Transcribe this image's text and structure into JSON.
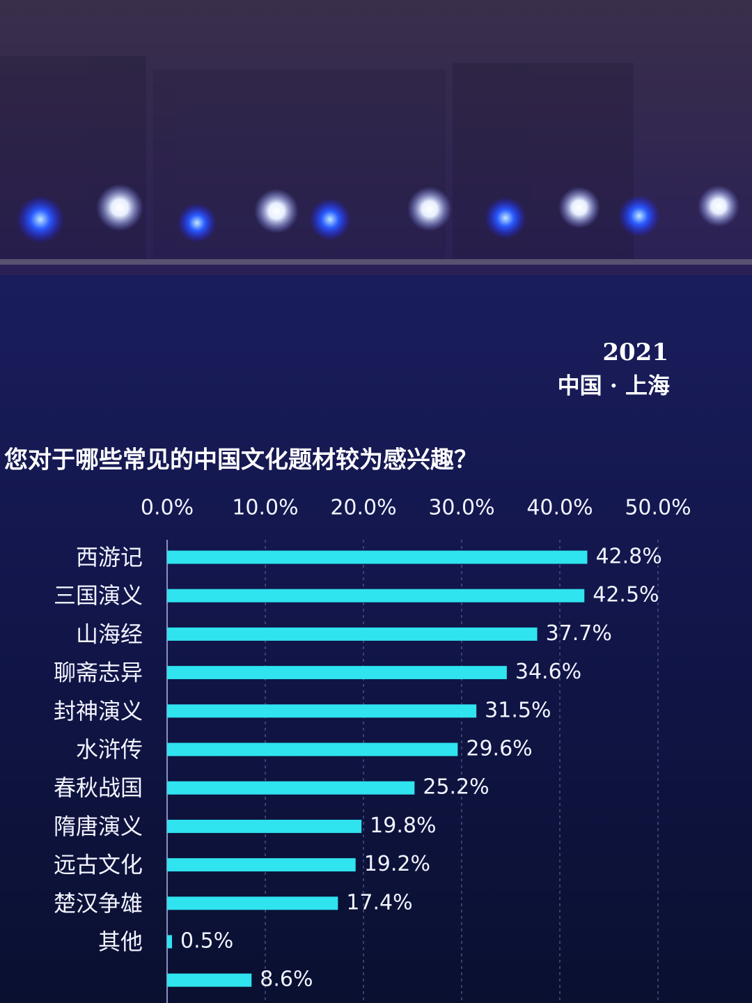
{
  "year": "2021",
  "location": "中国 · 上海",
  "chart_data": {
    "type": "bar",
    "title": "您对于哪些常见的中国文化题材较为感兴趣？",
    "categories": [
      "西游记",
      "三国演义",
      "山海经",
      "聊斋志异",
      "封神演义",
      "水浒传",
      "春秋战国",
      "隋唐演义",
      "远古文化",
      "楚汉争雄",
      "其他",
      null
    ],
    "values": [
      42.8,
      42.5,
      37.7,
      34.6,
      31.5,
      29.6,
      25.2,
      19.8,
      19.2,
      17.4,
      0.5,
      8.6
    ],
    "value_labels": [
      "42.8%",
      "42.5%",
      "37.7%",
      "34.6%",
      "31.5%",
      "29.6%",
      "25.2%",
      "19.8%",
      "19.2%",
      "17.4%",
      "0.5%",
      "8.6%"
    ],
    "color": "#2fe3ef",
    "xlim": [
      0,
      50
    ],
    "xticks": [
      {
        "value": 0,
        "label": "0.0%"
      },
      {
        "value": 10,
        "label": "10.0%"
      },
      {
        "value": 20,
        "label": "20.0%"
      },
      {
        "value": 30,
        "label": "30.0%"
      },
      {
        "value": 40,
        "label": "40.0%"
      },
      {
        "value": 50,
        "label": "50.0%"
      }
    ],
    "grid": true
  }
}
